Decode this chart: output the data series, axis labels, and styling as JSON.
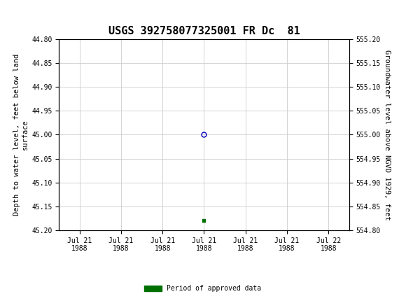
{
  "title": "USGS 392758077325001 FR Dc  81",
  "ylabel_left": "Depth to water level, feet below land\nsurface",
  "ylabel_right": "Groundwater level above NGVD 1929, feet",
  "ylim_left": [
    45.2,
    44.8
  ],
  "ylim_right": [
    554.8,
    555.2
  ],
  "yticks_left": [
    44.8,
    44.85,
    44.9,
    44.95,
    45.0,
    45.05,
    45.1,
    45.15,
    45.2
  ],
  "yticks_right": [
    555.2,
    555.15,
    555.1,
    555.05,
    555.0,
    554.95,
    554.9,
    554.85,
    554.8
  ],
  "xtick_labels": [
    "Jul 21\n1988",
    "Jul 21\n1988",
    "Jul 21\n1988",
    "Jul 21\n1988",
    "Jul 21\n1988",
    "Jul 21\n1988",
    "Jul 22\n1988"
  ],
  "point_x": 3.0,
  "point_y": 45.0,
  "point_color": "#0000bb",
  "green_marker_x": 3.0,
  "green_marker_y": 45.18,
  "green_color": "#007000",
  "grid_color": "#cccccc",
  "background_color": "#ffffff",
  "header_color": "#1a6e3c",
  "title_fontsize": 11,
  "axis_fontsize": 7.5,
  "tick_fontsize": 7,
  "legend_label": "Period of approved data",
  "x_positions": [
    0,
    1,
    2,
    3,
    4,
    5,
    6
  ],
  "xlim": [
    -0.5,
    6.5
  ]
}
